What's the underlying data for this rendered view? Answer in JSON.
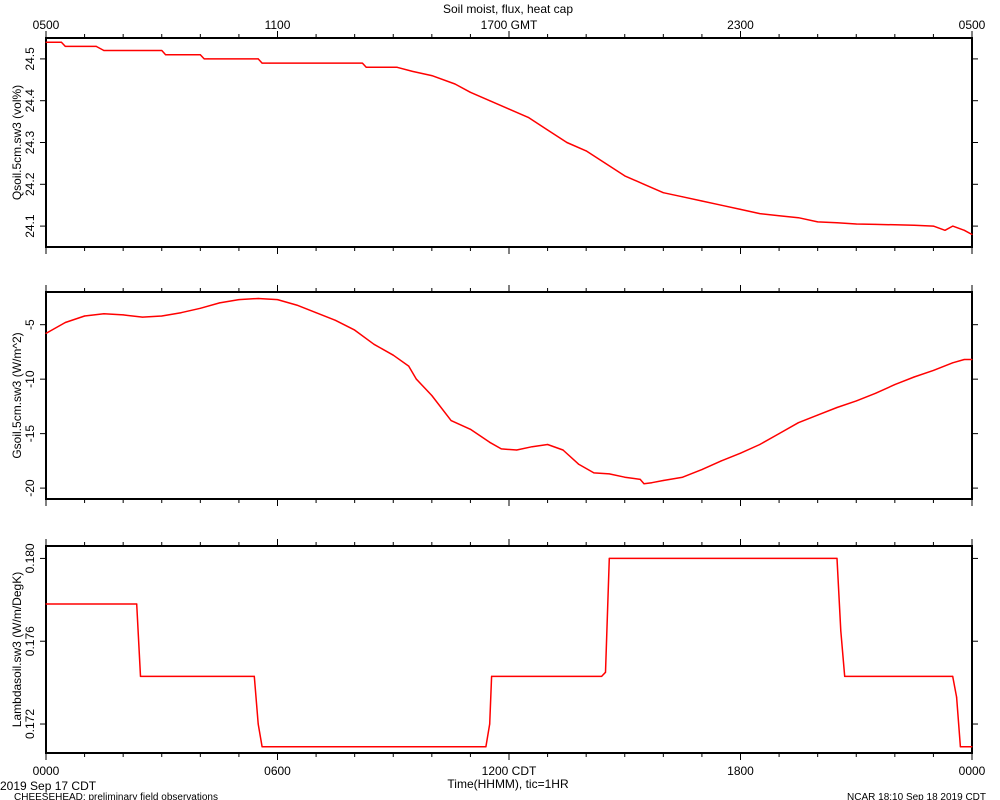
{
  "title": "Soil moist, flux, heat cap",
  "top_axis": {
    "ticks": [
      "0500",
      "1100",
      "1700 GMT",
      "2300",
      "0500"
    ],
    "values": [
      0,
      6,
      12,
      18,
      24
    ]
  },
  "bottom_axis": {
    "ticks": [
      "0000",
      "0600",
      "1200 CDT",
      "1800",
      "0000"
    ],
    "values": [
      0,
      6,
      12,
      18,
      24
    ],
    "xlabel": "Time(HHMM), tic=1HR"
  },
  "footer": {
    "date_left": "2019 Sep 17 CDT",
    "project": "CHEESEHEAD: preliminary field observations",
    "right": "NCAR 18:10 Sep 18 2019 CDT"
  },
  "colors": {
    "series": "#ff0000",
    "axis": "#000000",
    "background": "#ffffff"
  },
  "chart_data": [
    {
      "type": "line",
      "ylabel": "Qsoil.5cm.sw3 (vol%)",
      "ylim": [
        24.05,
        24.55
      ],
      "yticks": [
        24.1,
        24.2,
        24.3,
        24.4,
        24.5
      ],
      "ytick_labels": [
        "24.1",
        "24.2",
        "24.3",
        "24.4",
        "24.5"
      ],
      "x_unit": "hours since 0000 CDT",
      "x": [
        0,
        0.4,
        0.5,
        1.3,
        1.5,
        3.0,
        3.1,
        4.0,
        4.1,
        4.2,
        5.5,
        5.6,
        5.8,
        8.2,
        8.3,
        9.1,
        9.5,
        10.0,
        10.6,
        11.0,
        11.5,
        12.0,
        12.5,
        13.0,
        13.5,
        14.0,
        14.5,
        15.0,
        15.5,
        16.0,
        16.5,
        17.0,
        17.5,
        18.0,
        18.5,
        19.0,
        19.5,
        20.0,
        20.5,
        21.0,
        21.5,
        22.0,
        22.5,
        23.0,
        23.3,
        23.5,
        23.8,
        24.0
      ],
      "values": [
        24.54,
        24.54,
        24.53,
        24.53,
        24.52,
        24.52,
        24.51,
        24.51,
        24.5,
        24.5,
        24.5,
        24.49,
        24.49,
        24.49,
        24.48,
        24.48,
        24.47,
        24.46,
        24.44,
        24.42,
        24.4,
        24.38,
        24.36,
        24.33,
        24.3,
        24.28,
        24.25,
        24.22,
        24.2,
        24.18,
        24.17,
        24.16,
        24.15,
        24.14,
        24.13,
        24.125,
        24.12,
        24.11,
        24.108,
        24.105,
        24.104,
        24.103,
        24.102,
        24.1,
        24.09,
        24.1,
        24.09,
        24.08
      ]
    },
    {
      "type": "line",
      "ylabel": "Gsoil.5cm.sw3 (W/m^2)",
      "ylim": [
        -21,
        -2
      ],
      "yticks": [
        -20,
        -15,
        -10,
        -5
      ],
      "ytick_labels": [
        "-20",
        "-15",
        "-10",
        "-5"
      ],
      "x_unit": "hours since 0000 CDT",
      "x": [
        0,
        0.5,
        1.0,
        1.5,
        2.0,
        2.5,
        3.0,
        3.5,
        4.0,
        4.5,
        5.0,
        5.5,
        6.0,
        6.5,
        7.0,
        7.5,
        8.0,
        8.5,
        9.0,
        9.4,
        9.6,
        10.0,
        10.5,
        11.0,
        11.5,
        11.8,
        12.2,
        12.6,
        13.0,
        13.4,
        13.8,
        14.2,
        14.6,
        15.0,
        15.4,
        15.5,
        15.7,
        16.0,
        16.5,
        17.0,
        17.5,
        18.0,
        18.5,
        19.0,
        19.5,
        20.0,
        20.5,
        21.0,
        21.5,
        22.0,
        22.5,
        23.0,
        23.5,
        23.8,
        24.0
      ],
      "values": [
        -5.8,
        -4.8,
        -4.2,
        -4.0,
        -4.1,
        -4.3,
        -4.2,
        -3.9,
        -3.5,
        -3.0,
        -2.7,
        -2.6,
        -2.7,
        -3.2,
        -3.9,
        -4.6,
        -5.5,
        -6.8,
        -7.8,
        -8.8,
        -10.0,
        -11.5,
        -13.8,
        -14.6,
        -15.8,
        -16.4,
        -16.5,
        -16.2,
        -16.0,
        -16.5,
        -17.8,
        -18.6,
        -18.7,
        -19.0,
        -19.2,
        -19.6,
        -19.5,
        -19.3,
        -19.0,
        -18.3,
        -17.5,
        -16.8,
        -16.0,
        -15.0,
        -14.0,
        -13.3,
        -12.6,
        -12.0,
        -11.3,
        -10.5,
        -9.8,
        -9.2,
        -8.5,
        -8.2,
        -8.2
      ]
    },
    {
      "type": "line",
      "ylabel": "Lambdasoil.sw3 (W/m/DegK)",
      "ylim": [
        0.1706,
        0.1806
      ],
      "yticks": [
        0.172,
        0.176,
        0.18
      ],
      "ytick_labels": [
        "0.172",
        "0.176",
        "0.180"
      ],
      "x_unit": "hours since 0000 CDT",
      "x": [
        0,
        2.35,
        2.45,
        5.4,
        5.5,
        5.6,
        11.4,
        11.5,
        11.55,
        14.4,
        14.5,
        14.6,
        20.5,
        20.6,
        20.7,
        23.5,
        23.6,
        23.7,
        24.0
      ],
      "values": [
        0.1778,
        0.1778,
        0.1743,
        0.1743,
        0.172,
        0.1709,
        0.1709,
        0.172,
        0.1743,
        0.1743,
        0.1745,
        0.18,
        0.18,
        0.1765,
        0.1743,
        0.1743,
        0.1733,
        0.1709,
        0.1709
      ]
    }
  ]
}
